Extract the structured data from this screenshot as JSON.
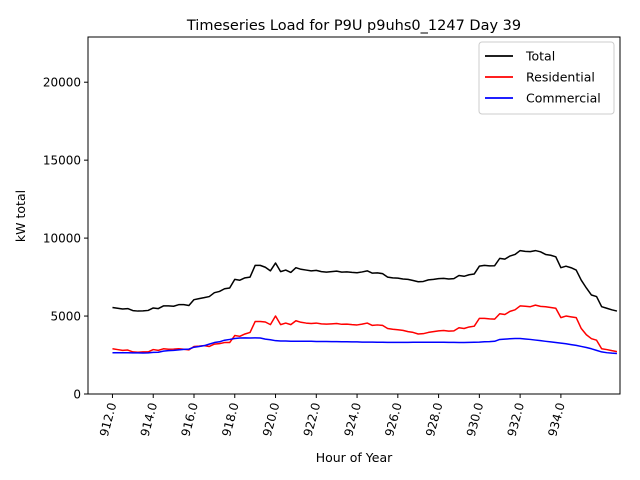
{
  "chart_data": {
    "type": "line",
    "title": "Timeseries Load for P9U p9uhs0_1247  Day 39",
    "xlabel": "Hour of Year",
    "ylabel": "kW total",
    "xlim": [
      910.8,
      936.9
    ],
    "ylim": [
      0,
      22900
    ],
    "xticks": [
      912,
      914,
      916,
      918,
      920,
      922,
      924,
      926,
      928,
      930,
      932,
      934
    ],
    "xtick_labels": [
      "912.0",
      "914.0",
      "916.0",
      "918.0",
      "920.0",
      "922.0",
      "924.0",
      "926.0",
      "928.0",
      "930.0",
      "932.0",
      "934.0"
    ],
    "yticks": [
      0,
      5000,
      10000,
      15000,
      20000
    ],
    "ytick_labels": [
      "0",
      "5000",
      "10000",
      "15000",
      "20000"
    ],
    "legend_position": "top-right",
    "x_start": 912.0,
    "x_step": 0.25,
    "series": [
      {
        "name": "Total",
        "color": "#000000",
        "values": [
          5550,
          5500,
          5450,
          5480,
          5350,
          5320,
          5330,
          5360,
          5520,
          5480,
          5650,
          5650,
          5630,
          5730,
          5730,
          5680,
          6050,
          6120,
          6180,
          6250,
          6500,
          6580,
          6750,
          6800,
          7350,
          7300,
          7450,
          7500,
          8250,
          8250,
          8130,
          7900,
          8400,
          7850,
          7950,
          7800,
          8100,
          8000,
          7950,
          7900,
          7930,
          7850,
          7820,
          7850,
          7880,
          7820,
          7830,
          7800,
          7780,
          7830,
          7900,
          7750,
          7770,
          7720,
          7500,
          7450,
          7430,
          7380,
          7350,
          7280,
          7200,
          7220,
          7320,
          7350,
          7400,
          7420,
          7380,
          7400,
          7600,
          7550,
          7650,
          7700,
          8200,
          8250,
          8220,
          8230,
          8700,
          8650,
          8850,
          8950,
          9200,
          9150,
          9130,
          9200,
          9120,
          8950,
          8900,
          8800,
          8100,
          8200,
          8100,
          7950,
          7300,
          6800,
          6350,
          6250,
          5600,
          5500,
          5400,
          5320
        ]
      },
      {
        "name": "Residential",
        "color": "#ff0000",
        "values": [
          2900,
          2850,
          2800,
          2820,
          2700,
          2680,
          2700,
          2700,
          2850,
          2800,
          2900,
          2870,
          2880,
          2900,
          2870,
          2830,
          3050,
          3070,
          3100,
          3050,
          3200,
          3230,
          3300,
          3300,
          3750,
          3700,
          3850,
          3950,
          4650,
          4650,
          4620,
          4450,
          5000,
          4450,
          4550,
          4450,
          4700,
          4600,
          4550,
          4520,
          4550,
          4500,
          4480,
          4500,
          4520,
          4470,
          4480,
          4450,
          4430,
          4480,
          4550,
          4400,
          4430,
          4400,
          4200,
          4150,
          4120,
          4080,
          4000,
          3950,
          3850,
          3870,
          3950,
          4000,
          4050,
          4070,
          4030,
          4050,
          4250,
          4200,
          4300,
          4350,
          4850,
          4850,
          4820,
          4800,
          5150,
          5100,
          5300,
          5400,
          5650,
          5630,
          5600,
          5700,
          5620,
          5600,
          5550,
          5500,
          4900,
          5000,
          4950,
          4900,
          4200,
          3800,
          3550,
          3450,
          2900,
          2850,
          2780,
          2720
        ]
      },
      {
        "name": "Commercial",
        "color": "#0000ff",
        "values": [
          2650,
          2650,
          2650,
          2650,
          2640,
          2640,
          2630,
          2640,
          2670,
          2680,
          2750,
          2780,
          2800,
          2830,
          2860,
          2880,
          3000,
          3050,
          3100,
          3200,
          3300,
          3350,
          3450,
          3500,
          3560,
          3590,
          3600,
          3590,
          3600,
          3590,
          3520,
          3480,
          3420,
          3400,
          3400,
          3380,
          3380,
          3380,
          3380,
          3380,
          3370,
          3370,
          3370,
          3360,
          3360,
          3350,
          3350,
          3340,
          3340,
          3330,
          3330,
          3330,
          3320,
          3320,
          3310,
          3310,
          3310,
          3310,
          3310,
          3320,
          3320,
          3320,
          3320,
          3320,
          3320,
          3320,
          3310,
          3310,
          3300,
          3300,
          3310,
          3320,
          3330,
          3350,
          3360,
          3380,
          3500,
          3520,
          3540,
          3560,
          3560,
          3530,
          3500,
          3460,
          3420,
          3380,
          3340,
          3300,
          3260,
          3220,
          3170,
          3120,
          3050,
          2980,
          2900,
          2800,
          2700,
          2650,
          2620,
          2600
        ]
      }
    ]
  }
}
